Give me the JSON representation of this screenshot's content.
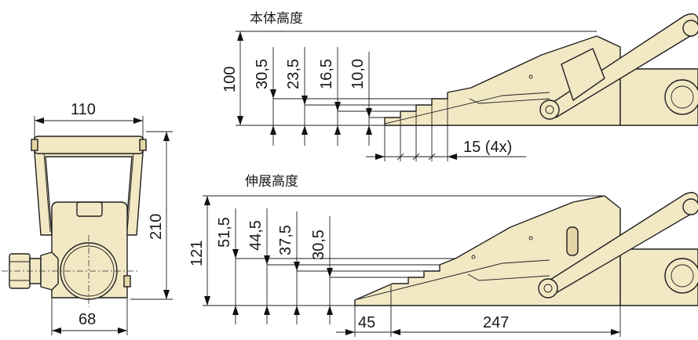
{
  "front_view": {
    "width_label": "110",
    "height_label": "210",
    "base_label": "68"
  },
  "top_view": {
    "caption": "本体高度",
    "total_height_label": "100",
    "step_labels": [
      "30,5",
      "23,5",
      "16,5",
      "10,0"
    ],
    "step_pitch_label": "15 (4x)"
  },
  "bottom_view": {
    "caption": "伸展高度",
    "total_height_label": "121",
    "step_labels": [
      "51,5",
      "44,5",
      "37,5",
      "30,5"
    ],
    "toe_label": "45",
    "length_label": "247"
  },
  "colors": {
    "body_fill": "#f2e8c4",
    "line": "#1f1f1f"
  }
}
